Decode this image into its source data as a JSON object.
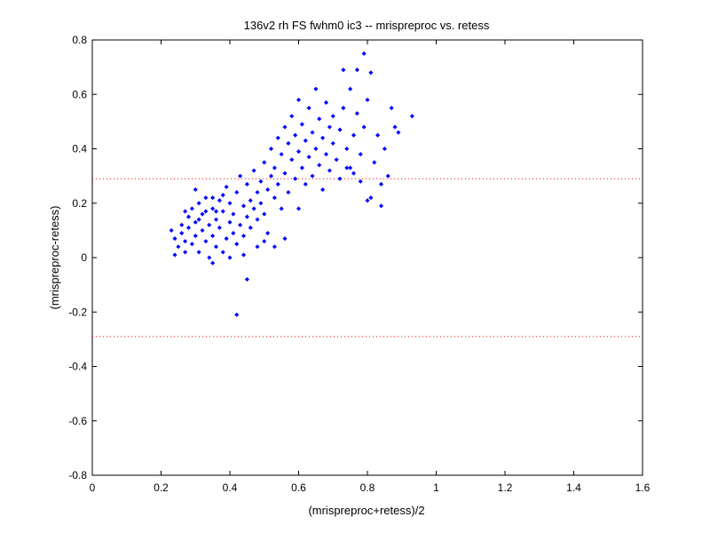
{
  "chart_data": {
    "type": "scatter",
    "title": "136v2 rh FS fwhm0 ic3 -- mrispreproc vs. retess",
    "xlabel": "(mrispreproc+retess)/2",
    "ylabel": "(mrispreproc-retess)",
    "xlim": [
      0,
      1.6
    ],
    "ylim": [
      -0.8,
      0.8
    ],
    "xticks": [
      "0",
      "0.2",
      "0.4",
      "0.6",
      "0.8",
      "1",
      "1.2",
      "1.4",
      "1.6"
    ],
    "yticks": [
      "0.8",
      "0.6",
      "0.4",
      "0.2",
      "0",
      "-0.2",
      "-0.4",
      "-0.6",
      "-0.8"
    ],
    "grid": false,
    "marker_color": "#0000ff",
    "reference_line_color": "#ff0000",
    "reference_lines_y": [
      0.29,
      -0.29
    ],
    "series": [
      {
        "points": [
          [
            0.23,
            0.1
          ],
          [
            0.24,
            0.07
          ],
          [
            0.24,
            0.01
          ],
          [
            0.25,
            0.04
          ],
          [
            0.26,
            0.12
          ],
          [
            0.26,
            0.09
          ],
          [
            0.27,
            0.02
          ],
          [
            0.27,
            0.06
          ],
          [
            0.28,
            0.15
          ],
          [
            0.28,
            0.11
          ],
          [
            0.29,
            0.05
          ],
          [
            0.29,
            0.18
          ],
          [
            0.3,
            0.13
          ],
          [
            0.3,
            0.08
          ],
          [
            0.3,
            0.25
          ],
          [
            0.31,
            0.2
          ],
          [
            0.31,
            0.02
          ],
          [
            0.32,
            0.16
          ],
          [
            0.32,
            0.1
          ],
          [
            0.33,
            0.06
          ],
          [
            0.33,
            0.22
          ],
          [
            0.34,
            0.12
          ],
          [
            0.34,
            0.0
          ],
          [
            0.35,
            0.18
          ],
          [
            0.35,
            0.08
          ],
          [
            0.35,
            -0.02
          ],
          [
            0.36,
            0.14
          ],
          [
            0.36,
            0.04
          ],
          [
            0.37,
            0.21
          ],
          [
            0.37,
            0.11
          ],
          [
            0.38,
            0.02
          ],
          [
            0.38,
            0.17
          ],
          [
            0.39,
            0.07
          ],
          [
            0.39,
            0.26
          ],
          [
            0.4,
            0.13
          ],
          [
            0.4,
            0.0
          ],
          [
            0.4,
            0.2
          ],
          [
            0.41,
            0.09
          ],
          [
            0.41,
            0.16
          ],
          [
            0.42,
            0.05
          ],
          [
            0.42,
            0.24
          ],
          [
            0.43,
            0.12
          ],
          [
            0.43,
            0.3
          ],
          [
            0.44,
            0.19
          ],
          [
            0.44,
            0.08
          ],
          [
            0.45,
            0.15
          ],
          [
            0.45,
            0.27
          ],
          [
            0.46,
            0.21
          ],
          [
            0.46,
            0.11
          ],
          [
            0.47,
            0.18
          ],
          [
            0.47,
            0.32
          ],
          [
            0.48,
            0.24
          ],
          [
            0.48,
            0.14
          ],
          [
            0.49,
            0.28
          ],
          [
            0.49,
            0.2
          ],
          [
            0.5,
            0.35
          ],
          [
            0.5,
            0.16
          ],
          [
            0.51,
            0.25
          ],
          [
            0.51,
            0.09
          ],
          [
            0.52,
            0.3
          ],
          [
            0.52,
            0.4
          ],
          [
            0.53,
            0.22
          ],
          [
            0.53,
            0.33
          ],
          [
            0.54,
            0.44
          ],
          [
            0.54,
            0.27
          ],
          [
            0.55,
            0.38
          ],
          [
            0.55,
            0.18
          ],
          [
            0.56,
            0.48
          ],
          [
            0.56,
            0.31
          ],
          [
            0.57,
            0.42
          ],
          [
            0.57,
            0.24
          ],
          [
            0.58,
            0.36
          ],
          [
            0.58,
            0.52
          ],
          [
            0.59,
            0.29
          ],
          [
            0.59,
            0.45
          ],
          [
            0.6,
            0.39
          ],
          [
            0.6,
            0.58
          ],
          [
            0.61,
            0.33
          ],
          [
            0.61,
            0.49
          ],
          [
            0.62,
            0.27
          ],
          [
            0.62,
            0.43
          ],
          [
            0.63,
            0.37
          ],
          [
            0.63,
            0.55
          ],
          [
            0.64,
            0.46
          ],
          [
            0.64,
            0.3
          ],
          [
            0.65,
            0.4
          ],
          [
            0.65,
            0.62
          ],
          [
            0.66,
            0.51
          ],
          [
            0.66,
            0.34
          ],
          [
            0.67,
            0.44
          ],
          [
            0.67,
            0.25
          ],
          [
            0.68,
            0.38
          ],
          [
            0.68,
            0.57
          ],
          [
            0.69,
            0.48
          ],
          [
            0.69,
            0.32
          ],
          [
            0.7,
            0.42
          ],
          [
            0.7,
            0.52
          ],
          [
            0.71,
            0.36
          ],
          [
            0.72,
            0.47
          ],
          [
            0.72,
            0.29
          ],
          [
            0.73,
            0.55
          ],
          [
            0.74,
            0.4
          ],
          [
            0.75,
            0.62
          ],
          [
            0.75,
            0.33
          ],
          [
            0.76,
            0.45
          ],
          [
            0.77,
            0.53
          ],
          [
            0.78,
            0.38
          ],
          [
            0.78,
            0.28
          ],
          [
            0.79,
            0.48
          ],
          [
            0.8,
            0.58
          ],
          [
            0.81,
            0.22
          ],
          [
            0.82,
            0.35
          ],
          [
            0.83,
            0.45
          ],
          [
            0.84,
            0.27
          ],
          [
            0.85,
            0.4
          ],
          [
            0.86,
            0.3
          ],
          [
            0.87,
            0.55
          ],
          [
            0.88,
            0.48
          ],
          [
            0.42,
            -0.21
          ],
          [
            0.45,
            -0.08
          ],
          [
            0.53,
            0.04
          ],
          [
            0.56,
            0.07
          ],
          [
            0.36,
            0.17
          ],
          [
            0.38,
            0.23
          ],
          [
            0.44,
            0.01
          ],
          [
            0.5,
            0.06
          ],
          [
            0.73,
            0.69
          ],
          [
            0.77,
            0.69
          ],
          [
            0.79,
            0.75
          ],
          [
            0.81,
            0.68
          ],
          [
            0.93,
            0.52
          ],
          [
            0.89,
            0.46
          ],
          [
            0.84,
            0.19
          ],
          [
            0.8,
            0.21
          ],
          [
            0.76,
            0.31
          ],
          [
            0.74,
            0.33
          ],
          [
            0.6,
            0.18
          ],
          [
            0.48,
            0.04
          ],
          [
            0.35,
            0.22
          ],
          [
            0.33,
            0.17
          ],
          [
            0.31,
            0.14
          ],
          [
            0.27,
            0.17
          ]
        ]
      }
    ]
  }
}
